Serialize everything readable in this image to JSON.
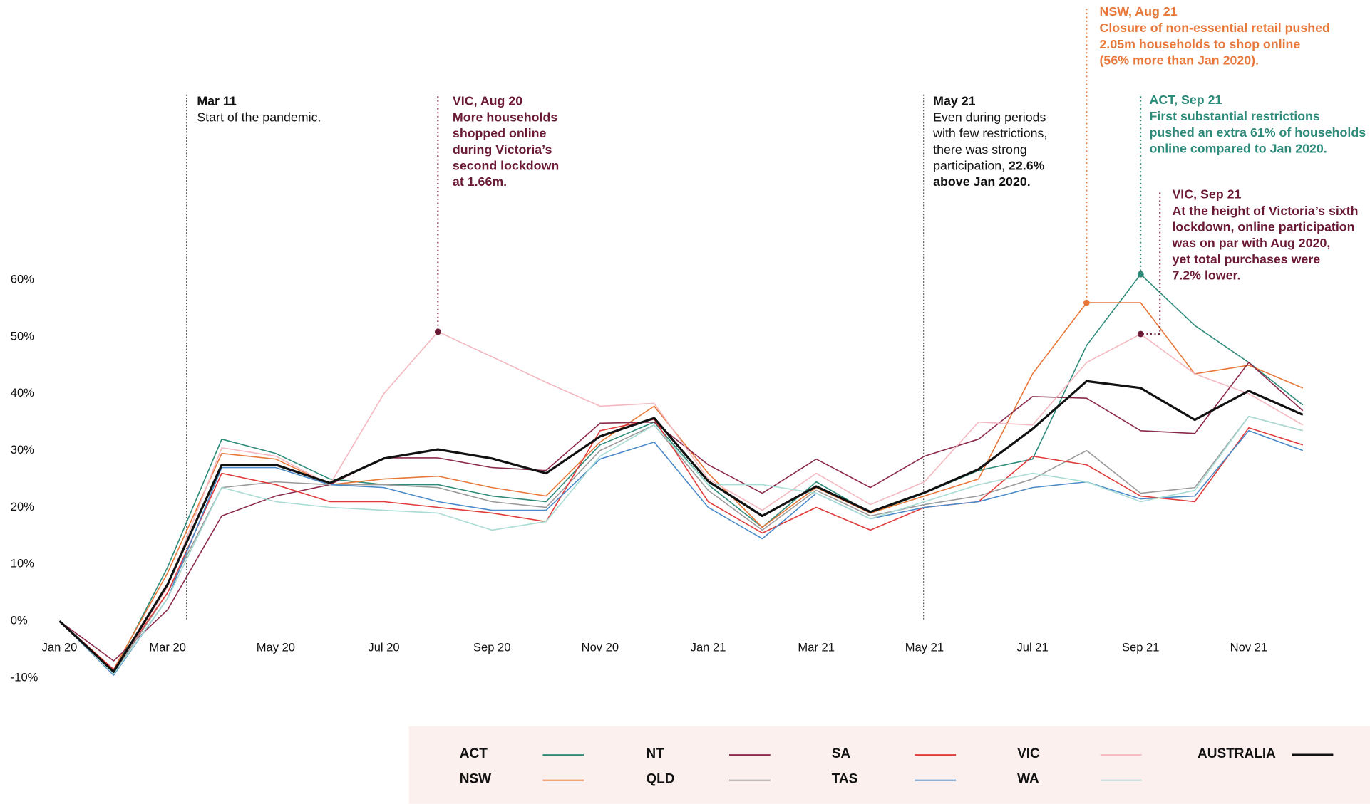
{
  "chart_data": {
    "type": "line",
    "categories": [
      "Jan 20",
      null,
      "Mar 20",
      null,
      "May 20",
      null,
      "Jul 20",
      null,
      "Sep 20",
      null,
      "Nov 20",
      null,
      "Jan 21",
      null,
      "Mar 21",
      null,
      "May 21",
      null,
      "Jul 21",
      null,
      "Sep 21",
      null,
      "Nov 21",
      null
    ],
    "ylim": [
      -10,
      60
    ],
    "yticks": [
      {
        "value": -10,
        "label": "-10%"
      },
      {
        "value": 0,
        "label": "0%"
      },
      {
        "value": 10,
        "label": "10%"
      },
      {
        "value": 20,
        "label": "20%"
      },
      {
        "value": 30,
        "label": "30%"
      },
      {
        "value": 40,
        "label": "40%"
      },
      {
        "value": 50,
        "label": "50%"
      },
      {
        "value": 60,
        "label": "60%"
      }
    ],
    "grid": false,
    "legend": "bottom",
    "series": [
      {
        "name": "ACT",
        "color": "#2e8b7a",
        "values": [
          0,
          -9,
          9.5,
          32,
          29.5,
          25,
          24,
          24,
          22,
          21,
          31,
          35,
          24,
          16.5,
          24.5,
          19,
          22.5,
          26.5,
          28.5,
          48.5,
          61,
          52,
          45.5,
          38
        ]
      },
      {
        "name": "NSW",
        "color": "#e8783a",
        "values": [
          0,
          -8.5,
          8.5,
          29.5,
          28.5,
          24,
          25,
          25.5,
          23.5,
          22,
          31.5,
          37.8,
          26,
          16.5,
          23.5,
          19,
          22,
          25,
          43.5,
          56,
          56,
          43.5,
          45,
          41
        ]
      },
      {
        "name": "NT",
        "color": "#8b2a4a",
        "values": [
          0,
          -7,
          2,
          18.5,
          22,
          24,
          28.7,
          28.7,
          27,
          26.5,
          34.8,
          35,
          27.5,
          22.5,
          28.5,
          23.5,
          29,
          32,
          39.5,
          39.2,
          33.5,
          33,
          45.5,
          37
        ]
      },
      {
        "name": "QLD",
        "color": "#9a9a9a",
        "values": [
          0,
          -9.2,
          5,
          23.5,
          24.5,
          24,
          24,
          23.5,
          21,
          20,
          30,
          34.5,
          23,
          16,
          23,
          18.5,
          20.5,
          22,
          25,
          30,
          22.5,
          23.5,
          36,
          33.5
        ]
      },
      {
        "name": "SA",
        "color": "#e03c3c",
        "values": [
          0,
          -8.5,
          5,
          26,
          24,
          21,
          21,
          20,
          19,
          17.5,
          33.5,
          35.5,
          21,
          15.5,
          20,
          16,
          20,
          21,
          29,
          27.5,
          22,
          21,
          34,
          31
        ]
      },
      {
        "name": "TAS",
        "color": "#4a8ac8",
        "values": [
          0,
          -9.5,
          4,
          27,
          27,
          24,
          23.5,
          21,
          19.5,
          19.5,
          28.5,
          31.5,
          20,
          14.5,
          22.5,
          18,
          20,
          21,
          23.5,
          24.5,
          21.5,
          22,
          33.5,
          30
        ]
      },
      {
        "name": "VIC",
        "color": "#f4b8c0",
        "values": [
          0,
          -9,
          6,
          30.5,
          29,
          24,
          40,
          50.9,
          46.5,
          42,
          37.8,
          38.3,
          25,
          19.5,
          26,
          20.5,
          24.5,
          35,
          34.5,
          45.5,
          50.5,
          43.5,
          40,
          34.5
        ]
      },
      {
        "name": "WA",
        "color": "#a8dcd4",
        "values": [
          0,
          -9.3,
          4,
          23.5,
          21,
          20,
          19.5,
          19,
          16,
          17.5,
          29,
          34.5,
          24,
          24,
          22.5,
          18,
          21,
          24,
          26,
          24.5,
          21,
          23,
          36,
          33.5
        ]
      },
      {
        "name": "AUSTRALIA",
        "color": "#111111",
        "values": [
          0,
          -8.9,
          6.5,
          27.5,
          27.5,
          24.3,
          28.6,
          30.2,
          28.6,
          26,
          32.5,
          35.7,
          24.6,
          18.5,
          23.7,
          19.2,
          22.6,
          26.7,
          33.8,
          42.2,
          41,
          35.4,
          40.5,
          36.3
        ]
      }
    ],
    "annotations": [
      {
        "title": "Mar 11",
        "color": "#111111",
        "lines": [
          [
            "Start of the pandemic."
          ]
        ]
      },
      {
        "title": "VIC, Aug 20",
        "color": "#6b1a35",
        "lines": [
          [
            "More households"
          ],
          [
            "shopped online"
          ],
          [
            "during Victoria’s"
          ],
          [
            "second lockdown"
          ],
          [
            "at ",
            {
              "text": "1.66m.",
              "bold": true
            }
          ]
        ]
      },
      {
        "title": "May 21",
        "color": "#111111",
        "lines": [
          [
            "Even during periods"
          ],
          [
            "with few restrictions,"
          ],
          [
            "there was strong"
          ],
          [
            "participation, ",
            {
              "text": "22.6%",
              "bold": true
            }
          ],
          [
            {
              "text": "above Jan 2020.",
              "bold": true
            }
          ]
        ]
      },
      {
        "title": "NSW, Aug 21",
        "color": "#e8783a",
        "lines": [
          [
            "Closure of non-essential retail pushed"
          ],
          [
            {
              "text": "2.05m households to shop online",
              "bold": true
            }
          ],
          [
            {
              "text": "(56% more than Jan 2020).",
              "bold": true
            }
          ]
        ]
      },
      {
        "title": "ACT, Sep 21",
        "color": "#2e8b7a",
        "lines": [
          [
            "First substantial restrictions"
          ],
          [
            "pushed an extra ",
            {
              "text": "61%",
              "bold": true
            },
            " of households"
          ],
          [
            "online compared to Jan 2020."
          ]
        ]
      },
      {
        "title": "VIC, Sep 21",
        "color": "#6b1a35",
        "lines": [
          [
            "At the height of Victoria’s sixth"
          ],
          [
            "lockdown, online participation"
          ],
          [
            "was on par with Aug 2020,"
          ],
          [
            "yet total purchases were"
          ],
          [
            {
              "text": "7.2% lower.",
              "bold": true
            }
          ]
        ]
      }
    ]
  }
}
